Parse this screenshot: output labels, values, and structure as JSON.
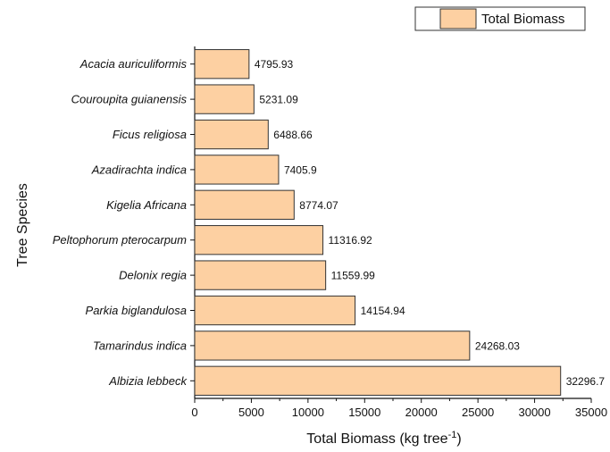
{
  "chart_data": {
    "type": "bar",
    "orientation": "horizontal",
    "categories": [
      "Acacia auriculiformis",
      "Couroupita guianensis",
      "Ficus religiosa",
      "Azadirachta indica",
      "Kigelia Africana",
      "Peltophorum pterocarpum",
      "Delonix regia",
      "Parkia biglandulosa",
      "Tamarindus indica",
      "Albizia lebbeck"
    ],
    "series": [
      {
        "name": "Total Biomass",
        "values": [
          4795.93,
          5231.09,
          6488.66,
          7405.9,
          8774.07,
          11316.92,
          11559.99,
          14154.94,
          24268.03,
          32296.7
        ],
        "value_labels": [
          "4795.93",
          "5231.09",
          "6488.66",
          "7405.9",
          "8774.07",
          "11316.92",
          "11559.99",
          "14154.94",
          "24268.03",
          "32296.7"
        ]
      }
    ],
    "xlabel_main": "Total Biomass (kg tree",
    "xlabel_sup": "-1",
    "xlabel_close": ")",
    "ylabel": "Tree Species",
    "xlim": [
      0,
      35000
    ],
    "xticks": [
      "0",
      "5000",
      "10000",
      "15000",
      "20000",
      "25000",
      "30000",
      "35000"
    ],
    "grid": false,
    "legend_position": "top-right",
    "colors": {
      "bar_fill": "#fdd0a2",
      "bar_stroke": "#333333"
    }
  }
}
